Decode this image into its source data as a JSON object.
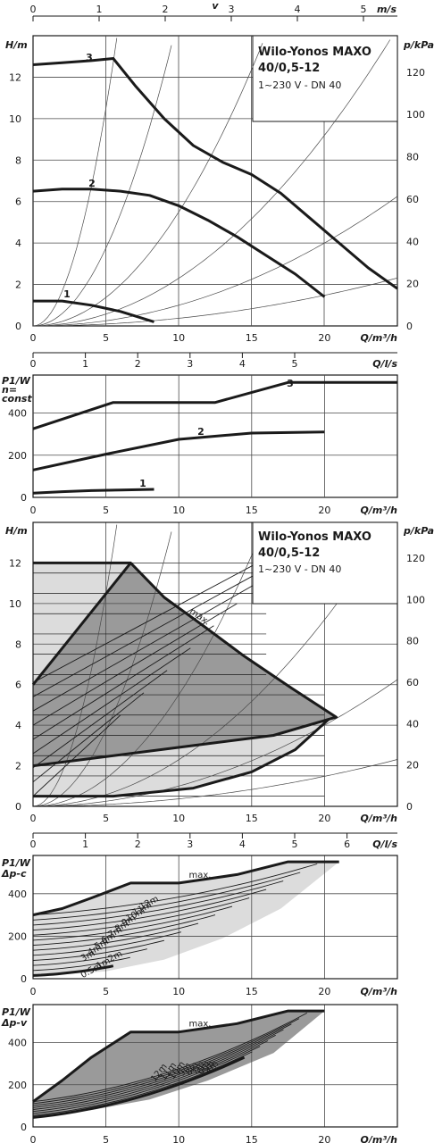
{
  "title": "Wilo-Yonos MAXO",
  "model": "40/0,5-12",
  "spec": "1~230 V - DN 40",
  "axis_labels": {
    "v": "v",
    "ms": "m/s",
    "H": "H/m",
    "p": "p/kPa",
    "Q": "Q/m³/h",
    "Ql": "Q/l/s",
    "P1_n": [
      "P1/W",
      "n=",
      "const"
    ],
    "P1_dpc": [
      "P1/W",
      "Δp-c"
    ],
    "P1_dpv": [
      "P1/W",
      "Δp-v"
    ]
  },
  "tick_labels": {
    "v": [
      "0",
      "1",
      "2",
      "3",
      "4",
      "5"
    ],
    "H": [
      "0",
      "2",
      "4",
      "6",
      "8",
      "10",
      "12"
    ],
    "p": [
      "0",
      "20",
      "40",
      "60",
      "80",
      "100",
      "120"
    ],
    "Q": [
      "0",
      "5",
      "10",
      "15",
      "20"
    ],
    "Ql": [
      "0",
      "1",
      "2",
      "3",
      "4",
      "5"
    ],
    "Ql6": [
      "0",
      "1",
      "2",
      "3",
      "4",
      "5",
      "6"
    ],
    "P": [
      "0",
      "200",
      "400"
    ]
  },
  "curve_names": [
    "1",
    "2",
    "3"
  ],
  "dpc_labels": [
    "12m",
    "11m",
    "10m",
    "9m",
    "8m",
    "7m",
    "6m",
    "5m",
    "4m",
    "3m",
    "2m",
    "1m",
    "0.5m"
  ],
  "dpv_labels": [
    "12m",
    "11m",
    "10m",
    "9m",
    "8m",
    "7m",
    "6m",
    "5m",
    "4m"
  ],
  "max_label": "max.",
  "colors": {
    "curve": "#1a1a1a",
    "grid": "#4a4a4a",
    "fill_dark": "#9a9a9a",
    "fill_light": "#dcdcdc"
  },
  "chart_data": [
    {
      "type": "line",
      "title": "Wilo-Yonos MAXO 40/0,5-12",
      "xlabel": "Q/m³/h",
      "ylabel": "H/m",
      "xlim": [
        0,
        25
      ],
      "ylim": [
        0,
        14
      ],
      "series": [
        {
          "name": "1",
          "x": [
            0,
            2,
            4,
            6,
            8.3
          ],
          "y": [
            1.2,
            1.2,
            1.0,
            0.7,
            0.2
          ]
        },
        {
          "name": "2",
          "x": [
            0,
            2,
            4,
            6,
            8,
            10,
            12,
            14,
            16,
            18,
            20
          ],
          "y": [
            6.5,
            6.6,
            6.6,
            6.5,
            6.3,
            5.8,
            5.1,
            4.3,
            3.4,
            2.5,
            1.4
          ]
        },
        {
          "name": "3",
          "x": [
            0,
            2,
            4,
            5.5,
            7,
            9,
            11,
            13,
            15,
            17,
            19,
            21,
            23,
            25
          ],
          "y": [
            12.6,
            12.7,
            12.8,
            12.9,
            11.6,
            10.0,
            8.7,
            7.9,
            7.3,
            6.4,
            5.2,
            4.0,
            2.8,
            1.8
          ]
        }
      ]
    },
    {
      "type": "line",
      "xlabel": "Q/m³/h",
      "ylabel": "P1/W",
      "xlim": [
        0,
        25
      ],
      "ylim": [
        0,
        580
      ],
      "series": [
        {
          "name": "1",
          "x": [
            0,
            2,
            4,
            6,
            8.3
          ],
          "y": [
            20,
            27,
            32,
            35,
            38
          ]
        },
        {
          "name": "2",
          "x": [
            0,
            5,
            10,
            15,
            20
          ],
          "y": [
            130,
            205,
            275,
            305,
            310
          ]
        },
        {
          "name": "3",
          "x": [
            0,
            5.5,
            10,
            12.5,
            17.5,
            25
          ],
          "y": [
            325,
            450,
            450,
            450,
            545,
            545
          ]
        }
      ]
    },
    {
      "type": "area",
      "xlabel": "Q/m³/h",
      "ylabel": "H/m",
      "xlim": [
        0,
        25
      ],
      "ylim": [
        0,
        14
      ],
      "regions": {
        "max_envelope": {
          "x": [
            0,
            6.8,
            9,
            11.5,
            14.5,
            17.8,
            20.3
          ],
          "y": [
            12,
            12,
            10.3,
            9.0,
            7.4,
            5.8,
            4.3
          ]
        },
        "dpc_zone": {
          "x": [
            0,
            6.8,
            20,
            16.5,
            0
          ],
          "y": [
            6,
            12,
            5,
            3.5,
            2
          ]
        }
      }
    },
    {
      "type": "line",
      "xlabel": "Q/m³/h",
      "ylabel": "P1/W, Δp-c",
      "xlim": [
        0,
        25
      ],
      "ylim": [
        0,
        580
      ],
      "series": [
        {
          "name": "max.",
          "x": [
            0,
            2,
            4,
            6.7,
            10,
            14,
            17.5,
            21
          ],
          "y": [
            300,
            330,
            380,
            450,
            450,
            490,
            550,
            550
          ]
        }
      ]
    },
    {
      "type": "line",
      "xlabel": "Q/m³/h",
      "ylabel": "P1/W, Δp-v",
      "xlim": [
        0,
        25
      ],
      "ylim": [
        0,
        580
      ],
      "series": [
        {
          "name": "max.",
          "x": [
            0,
            2,
            4,
            6.7,
            10,
            14,
            17.5,
            20
          ],
          "y": [
            120,
            220,
            330,
            450,
            450,
            490,
            550,
            550
          ]
        }
      ]
    }
  ]
}
